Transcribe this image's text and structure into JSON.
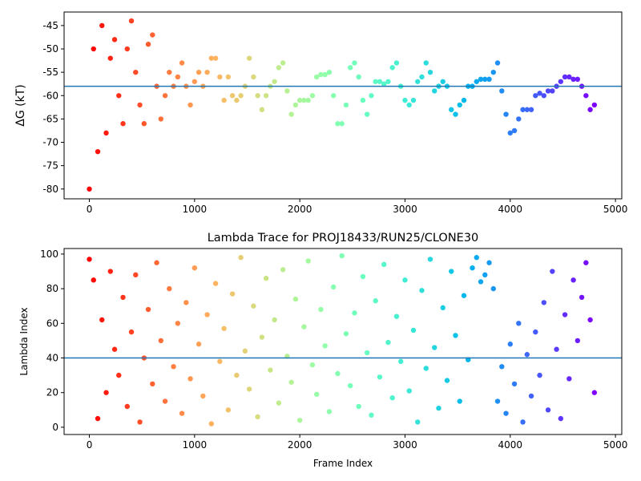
{
  "chart_data": [
    {
      "type": "scatter",
      "ylabel": "ΔG (kT)",
      "colormap": "rainbow_r",
      "xlim": [
        -240,
        5060
      ],
      "ylim": [
        -82.1,
        -42.1
      ],
      "xticks": [
        0,
        1000,
        2000,
        3000,
        4000,
        5000
      ],
      "yticks": [
        -80,
        -75,
        -70,
        -65,
        -60,
        -55,
        -50,
        -45
      ],
      "hline": {
        "value": -58,
        "color": "#1f77b4"
      },
      "x": [
        0,
        40,
        80,
        120,
        160,
        200,
        240,
        280,
        320,
        360,
        400,
        440,
        480,
        520,
        560,
        600,
        640,
        680,
        720,
        760,
        800,
        840,
        880,
        920,
        960,
        1000,
        1040,
        1080,
        1120,
        1160,
        1200,
        1240,
        1280,
        1320,
        1360,
        1400,
        1440,
        1480,
        1520,
        1560,
        1600,
        1640,
        1680,
        1720,
        1760,
        1800,
        1840,
        1880,
        1920,
        1960,
        2000,
        2040,
        2080,
        2120,
        2160,
        2200,
        2240,
        2280,
        2320,
        2360,
        2400,
        2440,
        2480,
        2520,
        2560,
        2600,
        2640,
        2680,
        2720,
        2760,
        2800,
        2840,
        2880,
        2920,
        2960,
        3000,
        3040,
        3080,
        3120,
        3160,
        3200,
        3240,
        3280,
        3320,
        3360,
        3400,
        3440,
        3480,
        3520,
        3560,
        3600,
        3640,
        3680,
        3720,
        3760,
        3800,
        3840,
        3880,
        3920,
        3960,
        4000,
        4040,
        4080,
        4120,
        4160,
        4200,
        4240,
        4280,
        4320,
        4360,
        4400,
        4440,
        4480,
        4520,
        4560,
        4600,
        4640,
        4680,
        4720,
        4760,
        4800
      ],
      "values": [
        -80,
        -50,
        -72,
        -45,
        -68,
        -52,
        -48,
        -60,
        -66,
        -50,
        -44,
        -55,
        -62,
        -66,
        -49,
        -47,
        -58,
        -65,
        -60,
        -55,
        -58,
        -56,
        -53,
        -58,
        -62,
        -57,
        -55,
        -58,
        -55,
        -52,
        -52,
        -56,
        -61,
        -56,
        -60,
        -61,
        -60,
        -58,
        -52,
        -56,
        -60,
        -63,
        -60,
        -58,
        -57,
        -54,
        -53,
        -59,
        -64,
        -62,
        -61,
        -61,
        -61,
        -60,
        -56,
        -55.5,
        -55.5,
        -55,
        -60,
        -66,
        -66,
        -62,
        -54,
        -53,
        -56,
        -61,
        -64,
        -60,
        -57,
        -57,
        -57.5,
        -57,
        -54,
        -53,
        -58,
        -61,
        -62,
        -61,
        -57,
        -56,
        -53,
        -55,
        -59,
        -58,
        -57,
        -58,
        -63,
        -64,
        -62,
        -61,
        -58,
        -58,
        -57,
        -56.5,
        -56.5,
        -56.5,
        -55,
        -53,
        -59,
        -64,
        -68,
        -67.5,
        -65,
        -63,
        -63,
        -63,
        -60,
        -59.5,
        -60,
        -59,
        -59,
        -58,
        -57,
        -56,
        -56,
        -56.5,
        -56.5,
        -58,
        -60,
        -63,
        -62
      ]
    },
    {
      "type": "scatter",
      "title": "Lambda Trace for PROJ18433/RUN25/CLONE30",
      "xlabel": "Frame Index",
      "ylabel": "Lambda Index",
      "colormap": "rainbow_r",
      "xlim": [
        -240,
        5060
      ],
      "ylim": [
        -4.2,
        103.2
      ],
      "xticks": [
        0,
        1000,
        2000,
        3000,
        4000,
        5000
      ],
      "yticks": [
        0,
        20,
        40,
        60,
        80,
        100
      ],
      "hline": {
        "value": 40,
        "color": "#1f77b4"
      },
      "x": [
        0,
        40,
        80,
        120,
        160,
        200,
        240,
        280,
        320,
        360,
        400,
        440,
        480,
        520,
        560,
        600,
        640,
        680,
        720,
        760,
        800,
        840,
        880,
        920,
        960,
        1000,
        1040,
        1080,
        1120,
        1160,
        1200,
        1240,
        1280,
        1320,
        1360,
        1400,
        1440,
        1480,
        1520,
        1560,
        1600,
        1640,
        1680,
        1720,
        1760,
        1800,
        1840,
        1880,
        1920,
        1960,
        2000,
        2040,
        2080,
        2120,
        2160,
        2200,
        2240,
        2280,
        2320,
        2360,
        2400,
        2440,
        2480,
        2520,
        2560,
        2600,
        2640,
        2680,
        2720,
        2760,
        2800,
        2840,
        2880,
        2920,
        2960,
        3000,
        3040,
        3080,
        3120,
        3160,
        3200,
        3240,
        3280,
        3320,
        3360,
        3400,
        3440,
        3480,
        3520,
        3560,
        3600,
        3640,
        3680,
        3720,
        3760,
        3800,
        3840,
        3880,
        3920,
        3960,
        4000,
        4040,
        4080,
        4120,
        4160,
        4200,
        4240,
        4280,
        4320,
        4360,
        4400,
        4440,
        4480,
        4520,
        4560,
        4600,
        4640,
        4680,
        4720,
        4760,
        4800
      ],
      "values": [
        97,
        85,
        5,
        62,
        20,
        90,
        45,
        30,
        75,
        12,
        55,
        88,
        3,
        40,
        68,
        25,
        95,
        50,
        15,
        80,
        35,
        60,
        8,
        72,
        28,
        92,
        48,
        18,
        65,
        2,
        83,
        38,
        57,
        10,
        77,
        30,
        98,
        44,
        22,
        70,
        6,
        52,
        86,
        33,
        62,
        14,
        91,
        41,
        26,
        74,
        4,
        58,
        96,
        36,
        19,
        68,
        47,
        9,
        81,
        31,
        99,
        54,
        24,
        66,
        12,
        87,
        43,
        7,
        73,
        29,
        94,
        49,
        17,
        64,
        38,
        85,
        21,
        56,
        3,
        79,
        34,
        97,
        46,
        11,
        69,
        27,
        90,
        53,
        15,
        76,
        39,
        92,
        98,
        84,
        88,
        95,
        80,
        15,
        35,
        8,
        48,
        25,
        60,
        3,
        42,
        18,
        55,
        30,
        72,
        10,
        90,
        45,
        5,
        65,
        28,
        85,
        50,
        75,
        95,
        62,
        20
      ]
    }
  ]
}
